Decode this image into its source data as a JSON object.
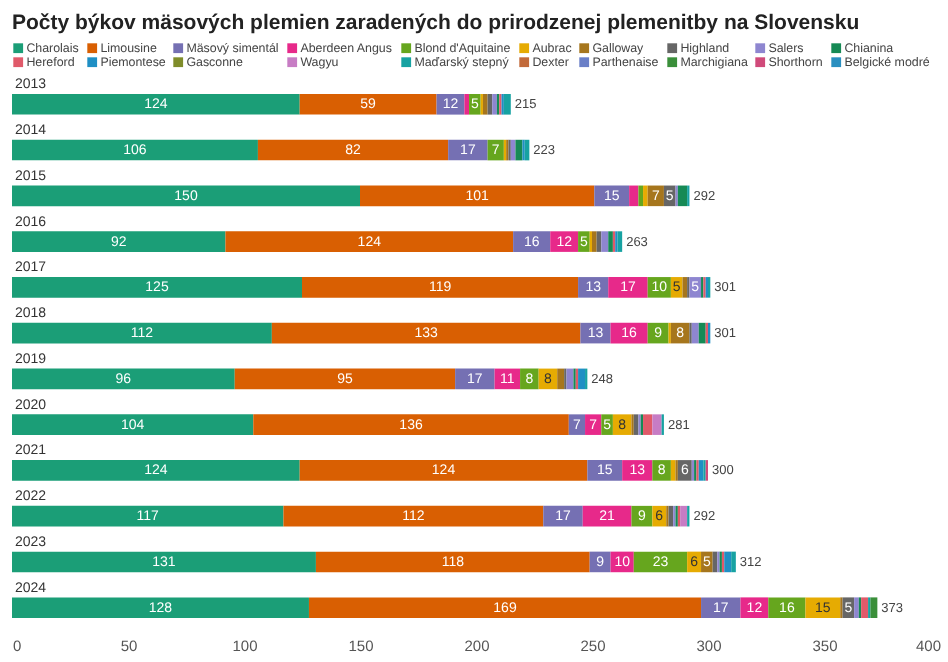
{
  "chart_data": {
    "type": "bar",
    "orientation": "horizontal",
    "stacked": true,
    "title": "Počty býkov mäsových plemien zaradených do prirodzenej plemenitby na Slovensku",
    "categories": [
      "2013",
      "2014",
      "2015",
      "2016",
      "2017",
      "2018",
      "2019",
      "2020",
      "2021",
      "2022",
      "2023",
      "2024"
    ],
    "xlim": [
      0,
      400
    ],
    "xticks": [
      0,
      50,
      100,
      150,
      200,
      250,
      300,
      350,
      400
    ],
    "grid": false,
    "legend": "top",
    "totals": [
      "215",
      "223",
      "292",
      "263",
      "301",
      "301",
      "248",
      "281",
      "300",
      "292",
      "312",
      "373"
    ],
    "series": [
      {
        "name": "Charolais",
        "color": "#1b9e77",
        "values": [
          124,
          106,
          150,
          92,
          125,
          112,
          96,
          104,
          124,
          117,
          131,
          128
        ],
        "value_labels": [
          "124",
          "106",
          "150",
          "92",
          "125",
          "112",
          "96",
          "104",
          "124",
          "117",
          "131",
          "128"
        ]
      },
      {
        "name": "Limousine",
        "color": "#d95f02",
        "values": [
          59,
          82,
          101,
          124,
          119,
          133,
          95,
          136,
          124,
          112,
          118,
          169
        ],
        "value_labels": [
          "59",
          "82",
          "101",
          "124",
          "119",
          "133",
          "95",
          "136",
          "124",
          "112",
          "118",
          "169"
        ]
      },
      {
        "name": "Mäsový simentál",
        "color": "#7570b3",
        "values": [
          12,
          17,
          15,
          16,
          13,
          13,
          17,
          7,
          15,
          17,
          9,
          17
        ],
        "value_labels": [
          "12",
          "17",
          "15",
          "16",
          "13",
          "13",
          "17",
          "7",
          "15",
          "17",
          "9",
          "17"
        ]
      },
      {
        "name": "Aberdeen Angus",
        "color": "#e7298a",
        "values": [
          2,
          0,
          4,
          12,
          17,
          16,
          11,
          7,
          13,
          21,
          10,
          12
        ],
        "value_labels": [
          null,
          null,
          null,
          "12",
          "17",
          "16",
          "11",
          "7",
          "13",
          "21",
          "10",
          "12"
        ]
      },
      {
        "name": "Blond d'Aquitaine",
        "color": "#66a61e",
        "values": [
          5,
          7,
          2,
          5,
          10,
          9,
          8,
          5,
          8,
          9,
          23,
          16
        ],
        "value_labels": [
          "5",
          "7",
          null,
          "5",
          "10",
          "9",
          "8",
          "5",
          "8",
          "9",
          "23",
          "16"
        ]
      },
      {
        "name": "Aubrac",
        "color": "#e6ab02",
        "values": [
          1,
          1,
          2,
          1,
          5,
          1,
          8,
          8,
          2,
          6,
          6,
          15
        ],
        "value_labels": [
          null,
          null,
          null,
          null,
          "5",
          null,
          "8",
          "8",
          null,
          "6",
          "6",
          "15"
        ]
      },
      {
        "name": "Galloway",
        "color": "#a6761d",
        "values": [
          2,
          1,
          7,
          2,
          2,
          8,
          3,
          1,
          1,
          1,
          5,
          1
        ],
        "value_labels": [
          null,
          null,
          "7",
          null,
          null,
          "8",
          null,
          null,
          null,
          null,
          "5",
          null
        ]
      },
      {
        "name": "Highland",
        "color": "#666666",
        "values": [
          2,
          1,
          5,
          2,
          1,
          1,
          1,
          2,
          6,
          2,
          2,
          5
        ],
        "value_labels": [
          null,
          null,
          "5",
          null,
          null,
          null,
          null,
          null,
          "6",
          null,
          null,
          "5"
        ]
      },
      {
        "name": "Salers",
        "color": "#8e86d0",
        "values": [
          2,
          2,
          1,
          3,
          5,
          3,
          3,
          1,
          1,
          1,
          1,
          2
        ],
        "value_labels": [
          null,
          null,
          null,
          null,
          "5",
          null,
          null,
          null,
          null,
          null,
          null,
          null
        ]
      },
      {
        "name": "Chianina",
        "color": "#168a55",
        "values": [
          1,
          3,
          4,
          2,
          1,
          3,
          1,
          1,
          1,
          1,
          1,
          1
        ],
        "value_labels": [
          null,
          null,
          null,
          null,
          null,
          null,
          null,
          null,
          null,
          null,
          null,
          null
        ]
      },
      {
        "name": "Hereford",
        "color": "#e05a6a",
        "values": [
          1,
          0,
          0,
          1,
          1,
          1,
          1,
          4,
          1,
          1,
          1,
          3
        ],
        "value_labels": [
          null,
          null,
          null,
          null,
          null,
          null,
          null,
          null,
          null,
          null,
          null,
          null
        ]
      },
      {
        "name": "Piemontese",
        "color": "#1f8fc4",
        "values": [
          1,
          1,
          0,
          1,
          1,
          1,
          3,
          0,
          2,
          0,
          3,
          0
        ],
        "value_labels": [
          null,
          null,
          null,
          null,
          null,
          null,
          null,
          null,
          null,
          null,
          null,
          null
        ]
      },
      {
        "name": "Gasconne",
        "color": "#7f8c2a",
        "values": [
          0,
          0,
          0,
          0,
          0,
          0,
          0,
          0,
          0,
          0,
          0,
          0
        ],
        "value_labels": [
          null,
          null,
          null,
          null,
          null,
          null,
          null,
          null,
          null,
          null,
          null,
          null
        ]
      },
      {
        "name": "Wagyu",
        "color": "#c77cc4",
        "values": [
          0,
          0,
          0,
          0,
          0,
          0,
          0,
          4,
          0,
          3,
          0,
          0
        ],
        "value_labels": [
          null,
          null,
          null,
          null,
          null,
          null,
          null,
          null,
          null,
          null,
          null,
          null
        ]
      },
      {
        "name": "Maďarský stepný",
        "color": "#17a2a2",
        "values": [
          3,
          2,
          1,
          2,
          1,
          0,
          1,
          1,
          1,
          1,
          2,
          1
        ],
        "value_labels": [
          null,
          null,
          null,
          null,
          null,
          null,
          null,
          null,
          null,
          null,
          null,
          null
        ]
      },
      {
        "name": "Dexter",
        "color": "#c26a3a",
        "values": [
          0,
          0,
          0,
          0,
          0,
          0,
          0,
          0,
          0,
          0,
          0,
          0
        ],
        "value_labels": [
          null,
          null,
          null,
          null,
          null,
          null,
          null,
          null,
          null,
          null,
          null,
          null
        ]
      },
      {
        "name": "Parthenaise",
        "color": "#6a7fc7",
        "values": [
          0,
          0,
          0,
          0,
          0,
          0,
          0,
          0,
          0,
          0,
          0,
          0
        ],
        "value_labels": [
          null,
          null,
          null,
          null,
          null,
          null,
          null,
          null,
          null,
          null,
          null,
          null
        ]
      },
      {
        "name": "Marchigiana",
        "color": "#3a8f3a",
        "values": [
          0,
          0,
          0,
          0,
          0,
          0,
          0,
          0,
          0,
          0,
          0,
          3
        ],
        "value_labels": [
          null,
          null,
          null,
          null,
          null,
          null,
          null,
          null,
          null,
          null,
          null,
          null
        ]
      },
      {
        "name": "Shorthorn",
        "color": "#d04a7a",
        "values": [
          0,
          0,
          0,
          0,
          0,
          0,
          0,
          0,
          1,
          0,
          0,
          0
        ],
        "value_labels": [
          null,
          null,
          null,
          null,
          null,
          null,
          null,
          null,
          null,
          null,
          null,
          null
        ]
      },
      {
        "name": "Belgické modré",
        "color": "#2a8fc0",
        "values": [
          0,
          0,
          0,
          0,
          0,
          0,
          0,
          0,
          0,
          0,
          0,
          0
        ],
        "value_labels": [
          null,
          null,
          null,
          null,
          null,
          null,
          null,
          null,
          null,
          null,
          null,
          null
        ]
      }
    ]
  }
}
